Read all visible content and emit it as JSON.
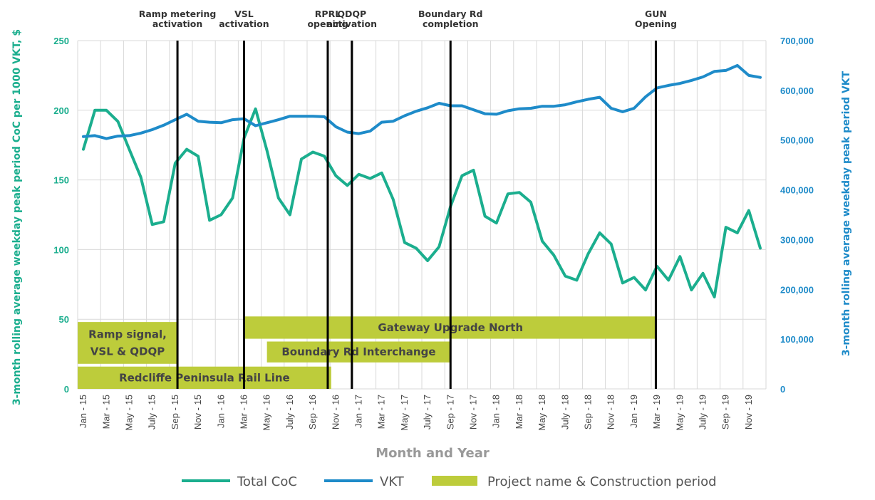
{
  "chart_data": {
    "type": "line",
    "xlabel": "Month and Year",
    "ylabel_left": "3-month rolling average weekday peak period CoC per 1000 VKT, $",
    "ylabel_right": "3-month rolling average weekday peak period VKT",
    "ylim_left": [
      0,
      250
    ],
    "ylim_right": [
      0,
      700000
    ],
    "yticks_left": [
      "0",
      "50",
      "100",
      "150",
      "200",
      "250"
    ],
    "yticks_right": [
      "0",
      "100,000",
      "200,000",
      "300,000",
      "400,000",
      "500,000",
      "600,000",
      "700,000"
    ],
    "grid": true,
    "legend_position": "bottom",
    "months": [
      "Jan-15",
      "Feb-15",
      "Mar-15",
      "Apr-15",
      "May-15",
      "Jun-15",
      "Jul-15",
      "Aug-15",
      "Sep-15",
      "Oct-15",
      "Nov-15",
      "Dec-15",
      "Jan-16",
      "Feb-16",
      "Mar-16",
      "Apr-16",
      "May-16",
      "Jun-16",
      "Jul-16",
      "Aug-16",
      "Sep-16",
      "Oct-16",
      "Nov-16",
      "Dec-16",
      "Jan-17",
      "Feb-17",
      "Mar-17",
      "Apr-17",
      "May-17",
      "Jun-17",
      "Jul-17",
      "Aug-17",
      "Sep-17",
      "Oct-17",
      "Nov-17",
      "Dec-17",
      "Jan-18",
      "Feb-18",
      "Mar-18",
      "Apr-18",
      "May-18",
      "Jun-18",
      "Jul-18",
      "Aug-18",
      "Sep-18",
      "Oct-18",
      "Nov-18",
      "Dec-18",
      "Jan-19",
      "Feb-19",
      "Mar-19",
      "Apr-19",
      "May-19",
      "Jun-19",
      "Jul-19",
      "Aug-19",
      "Sep-19",
      "Oct-19",
      "Nov-19",
      "Dec-19"
    ],
    "x_tick_labels": [
      "Jan - 15",
      "Mar - 15",
      "May - 15",
      "July - 15",
      "Sep - 15",
      "Nov - 15",
      "Jan - 16",
      "Mar - 16",
      "May - 16",
      "July - 16",
      "Sep - 16",
      "Nov - 16",
      "Jan - 17",
      "Mar - 17",
      "May - 17",
      "July - 17",
      "Sep - 17",
      "Nov - 17",
      "Jan - 18",
      "Mar - 18",
      "May - 18",
      "July - 18",
      "Sep - 18",
      "Nov - 18",
      "Jan - 19",
      "Mar - 19",
      "May - 19",
      "July - 19",
      "Sep - 19",
      "Nov - 19"
    ],
    "series": [
      {
        "name": "Total CoC",
        "axis": "left",
        "color": "#1BAE8E",
        "values": [
          172,
          200,
          200,
          192,
          172,
          152,
          118,
          120,
          162,
          172,
          167,
          121,
          125,
          137,
          180,
          201,
          171,
          137,
          125,
          165,
          170,
          167,
          153,
          146,
          154,
          151,
          155,
          136,
          105,
          101,
          92,
          102,
          131,
          153,
          157,
          124,
          119,
          140,
          141,
          134,
          106,
          96,
          81,
          78,
          97,
          112,
          104,
          76,
          80,
          71,
          88,
          78,
          95,
          71,
          83,
          66,
          116,
          112,
          128,
          101
        ]
      },
      {
        "name": "VKT",
        "axis": "right",
        "color": "#1E8BC9",
        "values": [
          507000,
          509000,
          503000,
          508000,
          509000,
          514000,
          521000,
          530000,
          541000,
          552000,
          538000,
          536000,
          535000,
          541000,
          543000,
          529000,
          535000,
          541000,
          548000,
          548000,
          548000,
          547000,
          527000,
          516000,
          513000,
          518000,
          536000,
          538000,
          549000,
          558000,
          565000,
          574000,
          569000,
          569000,
          561000,
          553000,
          552000,
          559000,
          563000,
          564000,
          568000,
          568000,
          571000,
          577000,
          582000,
          586000,
          564000,
          557000,
          564000,
          587000,
          605000,
          610000,
          614000,
          620000,
          627000,
          638000,
          640000,
          650000,
          630000,
          626000
        ]
      }
    ],
    "events": [
      {
        "label_lines": [
          "Ramp metering",
          "activation"
        ],
        "month_index": 8.2
      },
      {
        "label_lines": [
          "VSL",
          "activation"
        ],
        "month_index": 14.0
      },
      {
        "label_lines": [
          "RPRL",
          "opening"
        ],
        "month_index": 21.3
      },
      {
        "label_lines": [
          "QDQP",
          "activation"
        ],
        "month_index": 23.4
      },
      {
        "label_lines": [
          "Boundary Rd",
          "completion"
        ],
        "month_index": 32.0
      },
      {
        "label_lines": [
          "GUN",
          "Opening"
        ],
        "month_index": 49.9
      }
    ],
    "projects": [
      {
        "label_lines": [
          "Ramp signal,",
          "VSL & QDQP"
        ],
        "start": -0.5,
        "end": 8.2,
        "y_bottom": 18,
        "y_top": 48
      },
      {
        "label_lines": [
          "Gateway Upgrade North"
        ],
        "start": 14.0,
        "end": 50.0,
        "y_bottom": 36,
        "y_top": 52
      },
      {
        "label_lines": [
          "Boundary Rd Interchange"
        ],
        "start": 16.0,
        "end": 32.0,
        "y_bottom": 19,
        "y_top": 34
      },
      {
        "label_lines": [
          "Redcliffe Peninsula Rail Line"
        ],
        "start": -0.5,
        "end": 21.6,
        "y_bottom": 0,
        "y_top": 16
      }
    ],
    "project_color": "#BDCC3B",
    "legend": [
      {
        "label": "Total CoC",
        "kind": "line",
        "color": "#1BAE8E"
      },
      {
        "label": "VKT",
        "kind": "line",
        "color": "#1E8BC9"
      },
      {
        "label": "Project name & Construction period",
        "kind": "bar",
        "color": "#BDCC3B"
      }
    ]
  }
}
